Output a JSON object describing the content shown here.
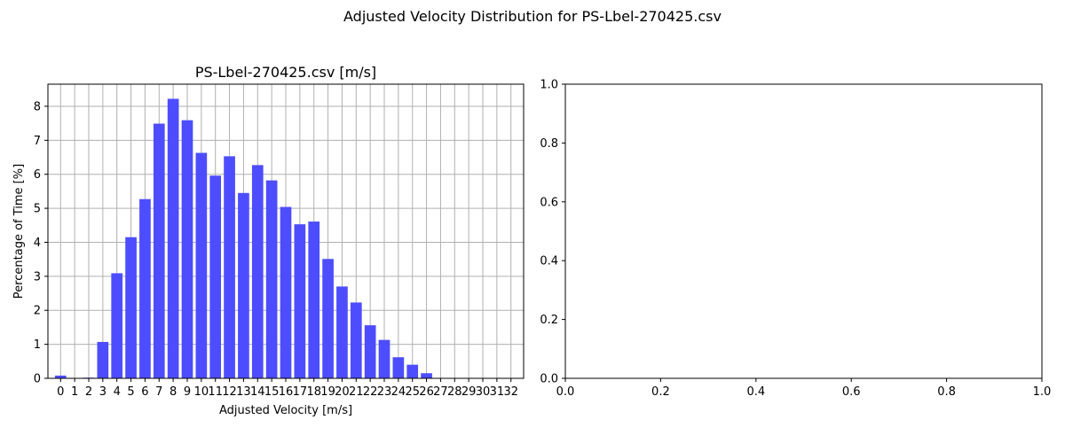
{
  "figure": {
    "suptitle": "Adjusted Velocity Distribution for PS-Lbel-270425.csv"
  },
  "chart_data": [
    {
      "type": "bar",
      "title": "PS-Lbel-270425.csv [m/s]",
      "xlabel": "Adjusted Velocity [m/s]",
      "ylabel": "Percentage of Time [%]",
      "categories": [
        "0",
        "1",
        "2",
        "3",
        "4",
        "5",
        "6",
        "7",
        "8",
        "9",
        "10",
        "11",
        "12",
        "13",
        "14",
        "15",
        "16",
        "17",
        "18",
        "19",
        "20",
        "21",
        "22",
        "23",
        "24",
        "25",
        "26",
        "27",
        "28",
        "29",
        "30",
        "31",
        "32"
      ],
      "values": [
        0.08,
        0.0,
        0.02,
        1.07,
        3.09,
        4.15,
        5.27,
        7.49,
        8.22,
        7.59,
        6.63,
        5.96,
        6.53,
        5.45,
        6.27,
        5.82,
        5.04,
        4.53,
        4.61,
        3.51,
        2.7,
        2.23,
        1.56,
        1.13,
        0.62,
        0.4,
        0.15,
        0.0,
        0.0,
        0.0,
        0.0,
        0.0,
        0.0
      ],
      "xlim": [
        -0.9,
        32.9
      ],
      "ylim": [
        0,
        8.65
      ],
      "yticks": [
        0,
        1,
        2,
        3,
        4,
        5,
        6,
        7,
        8
      ],
      "bar_width": 0.8,
      "bar_color": "#4d4dff",
      "grid": true
    },
    {
      "type": "empty",
      "title": "",
      "xlabel": "",
      "ylabel": "",
      "xlim": [
        0,
        1
      ],
      "ylim": [
        0,
        1
      ],
      "xticks": [
        "0.0",
        "0.2",
        "0.4",
        "0.6",
        "0.8",
        "1.0"
      ],
      "yticks": [
        "0.0",
        "0.2",
        "0.4",
        "0.6",
        "0.8",
        "1.0"
      ],
      "grid": false
    }
  ]
}
